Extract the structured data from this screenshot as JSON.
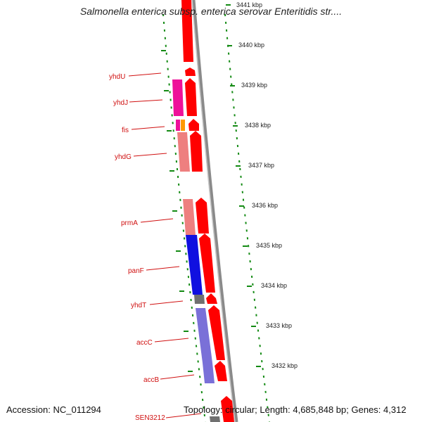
{
  "title": "Salmonella enterica subsp. enterica serovar Enteritidis str....",
  "accession": "Accession: NC_011294",
  "topology": "Topology: circular; Length: 4,685,848 bp; Genes: 4,312",
  "scale_labels": [
    "3441 kbp",
    "3440 kbp",
    "3439 kbp",
    "3438 kbp",
    "3437 kbp",
    "3436 kbp",
    "3435 kbp",
    "3434 kbp",
    "3433 kbp",
    "3432 kbp"
  ],
  "gene_labels": [
    "yhdU",
    "yhdJ",
    "fis",
    "yhdG",
    "prmA",
    "panF",
    "yhdT",
    "accC",
    "accB",
    "SEN3212"
  ],
  "colors": {
    "label": "#d01010",
    "forward_strand": "#ff0000",
    "gene_magenta": "#ee1199",
    "gene_pink": "#ee7f7f",
    "gene_blue": "#1010e0",
    "gene_purple": "#7a70d8",
    "gene_orange": "#ff9900",
    "gene_gray": "#707070",
    "scale_ticks": "#138a13",
    "backbone": "#8a8a8a"
  }
}
